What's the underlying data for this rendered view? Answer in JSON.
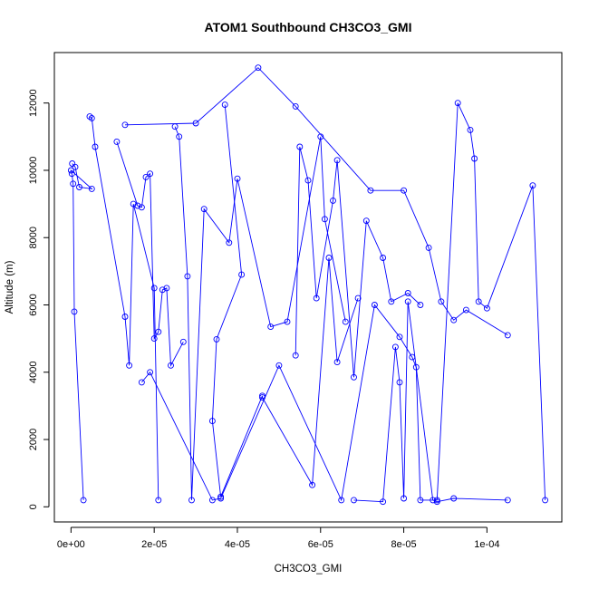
{
  "chart_data": {
    "type": "scatter",
    "title": "ATOM1 Southbound CH3CO3_GMI",
    "xlabel": "CH3CO3_GMI",
    "ylabel": "Altitude (m)",
    "xlim": [
      -4e-06,
      0.000118
    ],
    "ylim": [
      -450,
      13500
    ],
    "xticks": [
      0,
      2e-05,
      4e-05,
      6e-05,
      8e-05,
      0.0001
    ],
    "xtick_labels": [
      "0e+00",
      "2e-05",
      "4e-05",
      "6e-05",
      "8e-05",
      "1e-04"
    ],
    "yticks": [
      0,
      2000,
      4000,
      6000,
      8000,
      10000,
      12000
    ],
    "ytick_labels": [
      "0",
      "2000",
      "4000",
      "6000",
      "8000",
      "10000",
      "12000"
    ],
    "grid": false,
    "marker": "open-circle",
    "color": "#0000ff",
    "series": [
      {
        "x": [
          3e-07,
          1e-06,
          2e-06,
          5e-06,
          0.0,
          2e-07,
          5e-07,
          8e-07,
          3e-06
        ],
        "y": [
          10200,
          10100,
          9500,
          9450,
          10000,
          9900,
          9600,
          5800,
          200
        ]
      },
      {
        "x": [
          4.5e-06,
          5e-06,
          5.8e-06,
          1.3e-05,
          1.4e-05,
          1.5e-05,
          2e-05,
          2.1e-05
        ],
        "y": [
          11600,
          11550,
          10700,
          5650,
          4200,
          9000,
          6500,
          200
        ]
      },
      {
        "x": [
          1.3e-05,
          3e-05,
          4.5e-05,
          5.4e-05,
          7.2e-05,
          8e-05,
          8.6e-05,
          8.9e-05,
          9.2e-05,
          9.5e-05,
          0.000105
        ],
        "y": [
          11350,
          11400,
          13050,
          11900,
          9400,
          9400,
          7700,
          6100,
          5550,
          5850,
          5100
        ]
      },
      {
        "x": [
          3.7e-05,
          4.1e-05,
          3.5e-05,
          3.4e-05,
          3.6e-05,
          4.6e-05,
          4.6e-05,
          5.8e-05,
          6.2e-05,
          6.4e-05,
          6.9e-05
        ],
        "y": [
          11950,
          6900,
          4980,
          2550,
          300,
          3300,
          3250,
          650,
          7400,
          4300,
          6200
        ]
      },
      {
        "x": [
          2.5e-05,
          2.6e-05,
          2.8e-05,
          2.9e-05,
          3.2e-05,
          3.8e-05,
          4e-05,
          4.8e-05,
          5.2e-05,
          6e-05,
          6.1e-05,
          6.6e-05
        ],
        "y": [
          11300,
          11000,
          6850,
          200,
          8850,
          7850,
          9750,
          5350,
          5500,
          11000,
          8550,
          5500
        ]
      },
      {
        "x": [
          1.1e-05,
          1.6e-05,
          1.7e-05,
          1.8e-05,
          1.9e-05,
          2e-05,
          2.1e-05,
          2.2e-05,
          2.3e-05,
          2.4e-05,
          2.7e-05
        ],
        "y": [
          10850,
          8950,
          8900,
          9800,
          9900,
          5000,
          5200,
          6450,
          6500,
          4200,
          4900
        ]
      },
      {
        "x": [
          5.4e-05,
          5.5e-05,
          5.7e-05,
          5.9e-05,
          6.3e-05,
          6.4e-05,
          6.8e-05,
          7.1e-05,
          7.5e-05,
          7.7e-05,
          8.1e-05,
          8.4e-05
        ],
        "y": [
          4500,
          10700,
          9700,
          6200,
          9100,
          10300,
          3850,
          8500,
          7400,
          6100,
          6350,
          6000
        ]
      },
      {
        "x": [
          1.7e-05,
          1.9e-05,
          3.4e-05,
          3.6e-05,
          5e-05,
          6.5e-05,
          7.3e-05,
          7.9e-05,
          8.2e-05,
          8.3e-05,
          8.4e-05,
          8.8e-05,
          9.3e-05,
          9.6e-05,
          9.7e-05,
          9.8e-05,
          0.0001,
          0.000111,
          0.000114
        ],
        "y": [
          3700,
          4000,
          200,
          250,
          4200,
          200,
          6000,
          5050,
          4450,
          4150,
          200,
          200,
          12000,
          11200,
          10350,
          6100,
          5900,
          9550,
          200
        ]
      },
      {
        "x": [
          6.8e-05,
          7.5e-05,
          7.8e-05,
          7.9e-05,
          8e-05,
          8.1e-05,
          8.7e-05,
          8.8e-05,
          9.2e-05,
          0.000105
        ],
        "y": [
          200,
          150,
          4750,
          3700,
          250,
          6100,
          200,
          150,
          250,
          200
        ]
      }
    ]
  }
}
